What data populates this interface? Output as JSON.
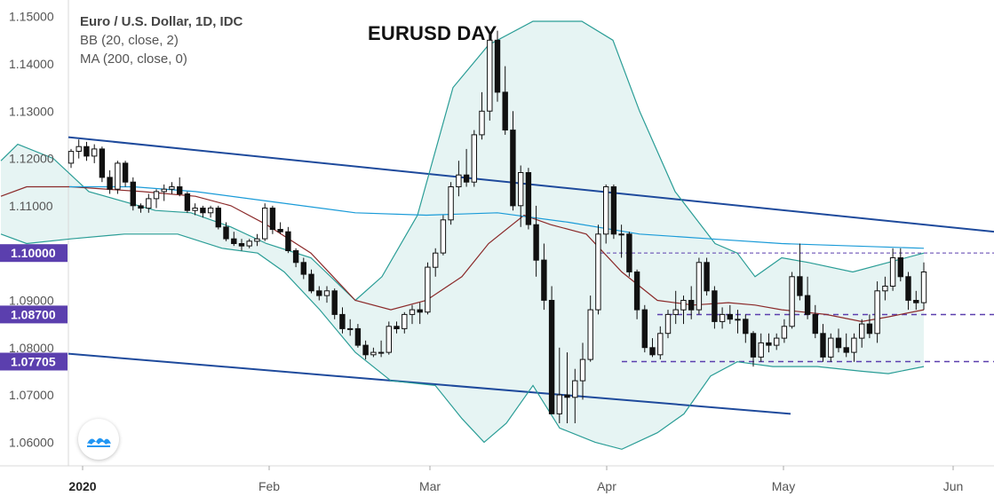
{
  "chart_data": {
    "type": "candlestick",
    "title": "EURUSD DAY",
    "legend_lines": [
      "Euro / U.S. Dollar, 1D, IDC",
      "BB (20, close, 2)",
      "MA (200, close, 0)"
    ],
    "ylim": [
      1.055,
      1.1535
    ],
    "y_ticks": [
      "1.15000",
      "1.14000",
      "1.13000",
      "1.12000",
      "1.11000",
      "1.10000",
      "1.09000",
      "1.08000",
      "1.07000",
      "1.06000"
    ],
    "x_ticks": [
      "2020",
      "Feb",
      "Mar",
      "Apr",
      "May",
      "Jun"
    ],
    "price_tags": [
      {
        "label": "1.10000",
        "value": 1.1
      },
      {
        "label": "1.08700",
        "value": 1.087
      },
      {
        "label": "1.07705",
        "value": 1.07705
      }
    ],
    "candles": [
      [
        1.119,
        1.122,
        1.118,
        1.1215
      ],
      [
        1.1215,
        1.124,
        1.12,
        1.1225
      ],
      [
        1.1225,
        1.1235,
        1.1195,
        1.1205
      ],
      [
        1.1205,
        1.123,
        1.119,
        1.122
      ],
      [
        1.122,
        1.1225,
        1.115,
        1.116
      ],
      [
        1.116,
        1.1175,
        1.1125,
        1.1135
      ],
      [
        1.1135,
        1.1195,
        1.1125,
        1.119
      ],
      [
        1.119,
        1.1195,
        1.114,
        1.115
      ],
      [
        1.115,
        1.116,
        1.109,
        1.11
      ],
      [
        1.11,
        1.1105,
        1.1085,
        1.1095
      ],
      [
        1.1095,
        1.1125,
        1.1085,
        1.1115
      ],
      [
        1.1115,
        1.1135,
        1.1095,
        1.113
      ],
      [
        1.113,
        1.1145,
        1.111,
        1.1135
      ],
      [
        1.1135,
        1.115,
        1.1125,
        1.114
      ],
      [
        1.114,
        1.116,
        1.112,
        1.1125
      ],
      [
        1.1125,
        1.113,
        1.1085,
        1.109
      ],
      [
        1.109,
        1.1105,
        1.108,
        1.1095
      ],
      [
        1.1095,
        1.11,
        1.1075,
        1.1085
      ],
      [
        1.1085,
        1.11,
        1.1075,
        1.1095
      ],
      [
        1.1095,
        1.11,
        1.105,
        1.1055
      ],
      [
        1.1055,
        1.1065,
        1.1025,
        1.103
      ],
      [
        1.103,
        1.1045,
        1.1015,
        1.102
      ],
      [
        1.102,
        1.103,
        1.1005,
        1.1015
      ],
      [
        1.1015,
        1.103,
        1.101,
        1.1025
      ],
      [
        1.1025,
        1.104,
        1.1015,
        1.103
      ],
      [
        1.103,
        1.1105,
        1.1025,
        1.1095
      ],
      [
        1.1095,
        1.11,
        1.104,
        1.105
      ],
      [
        1.105,
        1.1065,
        1.104,
        1.1045
      ],
      [
        1.1045,
        1.1055,
        1.1,
        1.1005
      ],
      [
        1.1005,
        1.101,
        1.097,
        1.098
      ],
      [
        1.098,
        1.099,
        1.0945,
        1.0955
      ],
      [
        1.0955,
        1.0965,
        1.0915,
        1.092
      ],
      [
        1.092,
        1.093,
        1.09,
        1.091
      ],
      [
        1.091,
        1.093,
        1.0895,
        1.092
      ],
      [
        1.092,
        1.0925,
        1.086,
        1.087
      ],
      [
        1.087,
        1.0885,
        1.083,
        1.084
      ],
      [
        1.084,
        1.086,
        1.0825,
        1.084
      ],
      [
        1.084,
        1.085,
        1.08,
        1.0805
      ],
      [
        1.0805,
        1.0815,
        1.0775,
        1.0785
      ],
      [
        1.0785,
        1.08,
        1.078,
        1.079
      ],
      [
        1.079,
        1.0815,
        1.078,
        1.079
      ],
      [
        1.079,
        1.0855,
        1.0785,
        1.0845
      ],
      [
        1.0845,
        1.0855,
        1.083,
        1.084
      ],
      [
        1.084,
        1.0875,
        1.083,
        1.087
      ],
      [
        1.087,
        1.089,
        1.085,
        1.088
      ],
      [
        1.088,
        1.0895,
        1.085,
        1.0875
      ],
      [
        1.0875,
        1.098,
        1.087,
        1.097
      ],
      [
        1.097,
        1.101,
        1.095,
        1.1
      ],
      [
        1.1,
        1.108,
        1.0995,
        1.107
      ],
      [
        1.107,
        1.115,
        1.106,
        1.114
      ],
      [
        1.114,
        1.1195,
        1.112,
        1.1165
      ],
      [
        1.1165,
        1.122,
        1.114,
        1.115
      ],
      [
        1.115,
        1.126,
        1.114,
        1.125
      ],
      [
        1.125,
        1.134,
        1.124,
        1.13
      ],
      [
        1.13,
        1.146,
        1.128,
        1.145
      ],
      [
        1.145,
        1.147,
        1.132,
        1.134
      ],
      [
        1.134,
        1.1395,
        1.125,
        1.126
      ],
      [
        1.126,
        1.13,
        1.109,
        1.11
      ],
      [
        1.11,
        1.1185,
        1.1055,
        1.117
      ],
      [
        1.117,
        1.118,
        1.105,
        1.106
      ],
      [
        1.106,
        1.11,
        1.095,
        1.0985
      ],
      [
        1.0985,
        1.102,
        1.088,
        1.09
      ],
      [
        1.09,
        1.093,
        1.066,
        1.066
      ],
      [
        1.066,
        1.08,
        1.064,
        1.07
      ],
      [
        1.07,
        1.079,
        1.064,
        1.0695
      ],
      [
        1.0695,
        1.0755,
        1.064,
        1.073
      ],
      [
        1.073,
        1.081,
        1.069,
        1.0775
      ],
      [
        1.0775,
        1.091,
        1.077,
        1.088
      ],
      [
        1.088,
        1.106,
        1.087,
        1.104
      ],
      [
        1.104,
        1.1145,
        1.102,
        1.114
      ],
      [
        1.114,
        1.1145,
        1.103,
        1.104
      ],
      [
        1.104,
        1.106,
        1.099,
        1.104
      ],
      [
        1.104,
        1.1045,
        1.095,
        1.096
      ],
      [
        1.096,
        1.0965,
        1.086,
        1.088
      ],
      [
        1.088,
        1.089,
        1.079,
        1.08
      ],
      [
        1.08,
        1.082,
        1.078,
        1.0785
      ],
      [
        1.0785,
        1.0845,
        1.0775,
        1.083
      ],
      [
        1.083,
        1.088,
        1.082,
        1.087
      ],
      [
        1.087,
        1.092,
        1.085,
        1.088
      ],
      [
        1.088,
        1.091,
        1.085,
        1.09
      ],
      [
        1.09,
        1.093,
        1.086,
        1.088
      ],
      [
        1.088,
        1.099,
        1.087,
        1.098
      ],
      [
        1.098,
        1.099,
        1.091,
        1.092
      ],
      [
        1.092,
        1.093,
        1.084,
        1.0855
      ],
      [
        1.0855,
        1.0885,
        1.084,
        1.087
      ],
      [
        1.087,
        1.089,
        1.085,
        1.086
      ],
      [
        1.086,
        1.088,
        1.083,
        1.086
      ],
      [
        1.086,
        1.087,
        1.081,
        1.083
      ],
      [
        1.083,
        1.0835,
        1.076,
        1.078
      ],
      [
        1.078,
        1.083,
        1.077,
        1.081
      ],
      [
        1.081,
        1.083,
        1.079,
        1.0805
      ],
      [
        1.0805,
        1.083,
        1.0795,
        1.082
      ],
      [
        1.082,
        1.086,
        1.081,
        1.0845
      ],
      [
        1.0845,
        1.096,
        1.084,
        1.095
      ],
      [
        1.095,
        1.102,
        1.09,
        1.091
      ],
      [
        1.091,
        1.095,
        1.086,
        1.087
      ],
      [
        1.087,
        1.089,
        1.082,
        1.083
      ],
      [
        1.083,
        1.085,
        1.077,
        1.078
      ],
      [
        1.078,
        1.083,
        1.077,
        1.082
      ],
      [
        1.082,
        1.084,
        1.079,
        1.08
      ],
      [
        1.08,
        1.083,
        1.078,
        1.079
      ],
      [
        1.079,
        1.083,
        1.077,
        1.082
      ],
      [
        1.082,
        1.086,
        1.08,
        1.085
      ],
      [
        1.085,
        1.087,
        1.082,
        1.083
      ],
      [
        1.083,
        1.094,
        1.081,
        1.092
      ],
      [
        1.092,
        1.095,
        1.09,
        1.093
      ],
      [
        1.093,
        1.101,
        1.092,
        1.099
      ],
      [
        1.099,
        1.101,
        1.094,
        1.095
      ],
      [
        1.095,
        1.096,
        1.088,
        1.09
      ],
      [
        1.09,
        1.092,
        1.088,
        1.0895
      ],
      [
        1.0895,
        1.098,
        1.088,
        1.096
      ]
    ],
    "bollinger": {
      "upper": [
        [
          1,
          1.1195
        ],
        [
          20,
          1.123
        ],
        [
          60,
          1.12
        ],
        [
          100,
          1.113
        ],
        [
          175,
          1.109
        ],
        [
          215,
          1.1085
        ],
        [
          260,
          1.1055
        ],
        [
          300,
          1.102
        ],
        [
          350,
          1.099
        ],
        [
          400,
          1.09
        ],
        [
          430,
          1.095
        ],
        [
          470,
          1.108
        ],
        [
          510,
          1.135
        ],
        [
          550,
          1.144
        ],
        [
          600,
          1.149
        ],
        [
          655,
          1.149
        ],
        [
          690,
          1.145
        ],
        [
          720,
          1.13
        ],
        [
          760,
          1.113
        ],
        [
          805,
          1.102
        ],
        [
          830,
          1.1
        ],
        [
          850,
          1.095
        ],
        [
          880,
          1.099
        ],
        [
          910,
          1.098
        ],
        [
          960,
          1.096
        ],
        [
          1000,
          1.098
        ],
        [
          1040,
          1.1
        ]
      ],
      "middle": [
        [
          1,
          1.112
        ],
        [
          30,
          1.114
        ],
        [
          80,
          1.114
        ],
        [
          160,
          1.113
        ],
        [
          220,
          1.112
        ],
        [
          260,
          1.11
        ],
        [
          300,
          1.106
        ],
        [
          350,
          1.1
        ],
        [
          400,
          1.09
        ],
        [
          440,
          1.088
        ],
        [
          480,
          1.09
        ],
        [
          520,
          1.095
        ],
        [
          550,
          1.102
        ],
        [
          590,
          1.108
        ],
        [
          620,
          1.106
        ],
        [
          660,
          1.104
        ],
        [
          700,
          1.096
        ],
        [
          740,
          1.09
        ],
        [
          780,
          1.089
        ],
        [
          820,
          1.0895
        ],
        [
          850,
          1.089
        ],
        [
          880,
          1.088
        ],
        [
          930,
          1.087
        ],
        [
          970,
          1.0855
        ],
        [
          1000,
          1.0865
        ],
        [
          1040,
          1.088
        ]
      ],
      "lower": [
        [
          1,
          1.104
        ],
        [
          30,
          1.102
        ],
        [
          80,
          1.103
        ],
        [
          140,
          1.104
        ],
        [
          200,
          1.104
        ],
        [
          250,
          1.101
        ],
        [
          290,
          1.1
        ],
        [
          320,
          1.096
        ],
        [
          360,
          1.088
        ],
        [
          400,
          1.079
        ],
        [
          440,
          1.073
        ],
        [
          490,
          1.072
        ],
        [
          520,
          1.065
        ],
        [
          545,
          1.06
        ],
        [
          570,
          1.064
        ],
        [
          600,
          1.072
        ],
        [
          630,
          1.063
        ],
        [
          670,
          1.06
        ],
        [
          700,
          1.0585
        ],
        [
          740,
          1.062
        ],
        [
          770,
          1.066
        ],
        [
          800,
          1.074
        ],
        [
          830,
          1.077
        ],
        [
          870,
          1.076
        ],
        [
          920,
          1.076
        ],
        [
          970,
          1.075
        ],
        [
          1000,
          1.0745
        ],
        [
          1040,
          1.076
        ]
      ]
    },
    "ma200": [
      [
        78,
        1.114
      ],
      [
        150,
        1.114
      ],
      [
        220,
        1.113
      ],
      [
        300,
        1.111
      ],
      [
        400,
        1.1085
      ],
      [
        480,
        1.108
      ],
      [
        560,
        1.1085
      ],
      [
        640,
        1.1065
      ],
      [
        720,
        1.104
      ],
      [
        800,
        1.103
      ],
      [
        880,
        1.102
      ],
      [
        960,
        1.1015
      ],
      [
        1040,
        1.101
      ]
    ],
    "colors": {
      "bb_band": "#2a9d96",
      "bb_fill": "#e6f4f3",
      "ma_line": "#1a9bd8",
      "basis": "#8b2a2a",
      "channel": "#1e4a9c",
      "price_tag": "#5b3fae",
      "dashed": "#5b3fae",
      "candle_up": "#ffffff",
      "candle_down": "#111111"
    }
  }
}
